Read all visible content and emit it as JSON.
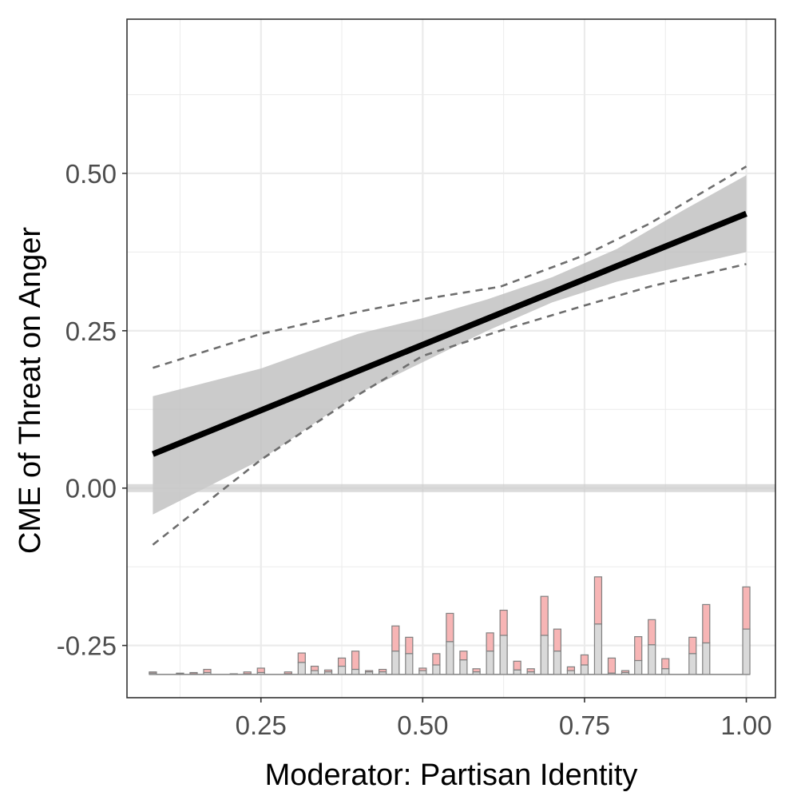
{
  "chart_data": {
    "type": "line",
    "xlabel": "Moderator: Partisan Identity",
    "ylabel": "CME of Threat on Anger",
    "xlim": [
      0.043,
      1.045
    ],
    "ylim": [
      -0.333,
      0.745
    ],
    "x_ticks": [
      0.25,
      0.5,
      0.75,
      1.0
    ],
    "x_tick_labels": [
      "0.25",
      "0.50",
      "0.75",
      "1.00"
    ],
    "y_ticks": [
      -0.25,
      0.0,
      0.25,
      0.5
    ],
    "y_tick_labels": [
      "-0.25",
      "0.00",
      "0.25",
      "0.50"
    ],
    "grid": true,
    "legend": "none",
    "reference_line": 0,
    "series": [
      {
        "role": "estimate",
        "x": [
          0.083,
          1.0
        ],
        "y": [
          0.054,
          0.436
        ]
      },
      {
        "role": "confidence-band",
        "x": [
          0.083,
          0.25,
          0.4,
          0.5,
          0.6,
          0.7,
          0.8,
          0.9,
          1.0
        ],
        "lower": [
          -0.042,
          0.045,
          0.15,
          0.2,
          0.25,
          0.295,
          0.328,
          0.352,
          0.375
        ],
        "upper": [
          0.146,
          0.19,
          0.245,
          0.27,
          0.3,
          0.335,
          0.38,
          0.44,
          0.497
        ]
      },
      {
        "role": "dashed-bounds",
        "x": [
          0.083,
          0.25,
          0.4,
          0.5,
          0.62,
          0.75,
          0.85,
          1.0
        ],
        "lower": [
          -0.09,
          0.045,
          0.148,
          0.21,
          0.25,
          0.29,
          0.32,
          0.356
        ],
        "upper": [
          0.191,
          0.245,
          0.28,
          0.3,
          0.32,
          0.37,
          0.42,
          0.511
        ]
      }
    ],
    "histogram": {
      "baseline": -0.296,
      "x": [
        0.083,
        0.125,
        0.146,
        0.167,
        0.208,
        0.229,
        0.25,
        0.292,
        0.313,
        0.333,
        0.354,
        0.375,
        0.396,
        0.417,
        0.438,
        0.458,
        0.479,
        0.5,
        0.521,
        0.542,
        0.563,
        0.583,
        0.604,
        0.625,
        0.646,
        0.667,
        0.688,
        0.708,
        0.729,
        0.75,
        0.771,
        0.792,
        0.813,
        0.833,
        0.854,
        0.875,
        0.917,
        0.938,
        1.0
      ],
      "control_top": [
        -0.294,
        -0.295,
        -0.295,
        -0.293,
        -0.296,
        -0.295,
        -0.293,
        -0.295,
        -0.277,
        -0.29,
        -0.292,
        -0.283,
        -0.288,
        -0.292,
        -0.292,
        -0.259,
        -0.263,
        -0.29,
        -0.281,
        -0.244,
        -0.273,
        -0.292,
        -0.259,
        -0.234,
        -0.289,
        -0.292,
        -0.234,
        -0.259,
        -0.29,
        -0.281,
        -0.216,
        -0.294,
        -0.293,
        -0.274,
        -0.249,
        -0.287,
        -0.263,
        -0.246,
        -0.224
      ],
      "treated_top": [
        -0.292,
        -0.294,
        -0.293,
        -0.288,
        -0.295,
        -0.292,
        -0.286,
        -0.292,
        -0.262,
        -0.283,
        -0.289,
        -0.27,
        -0.259,
        -0.29,
        -0.288,
        -0.219,
        -0.237,
        -0.286,
        -0.263,
        -0.199,
        -0.259,
        -0.287,
        -0.23,
        -0.194,
        -0.275,
        -0.287,
        -0.172,
        -0.224,
        -0.284,
        -0.265,
        -0.141,
        -0.27,
        -0.29,
        -0.236,
        -0.209,
        -0.271,
        -0.237,
        -0.185,
        -0.157
      ],
      "control_color": "#d9d9d9",
      "treated_color": "#f7b5b5",
      "outline_color": "#808080"
    },
    "colors": {
      "estimate_line": "#000000",
      "band": "#bebebe",
      "dashed": "#6e6e6e",
      "grid": "#ebebeb",
      "zero_line": "#cccccc"
    }
  }
}
